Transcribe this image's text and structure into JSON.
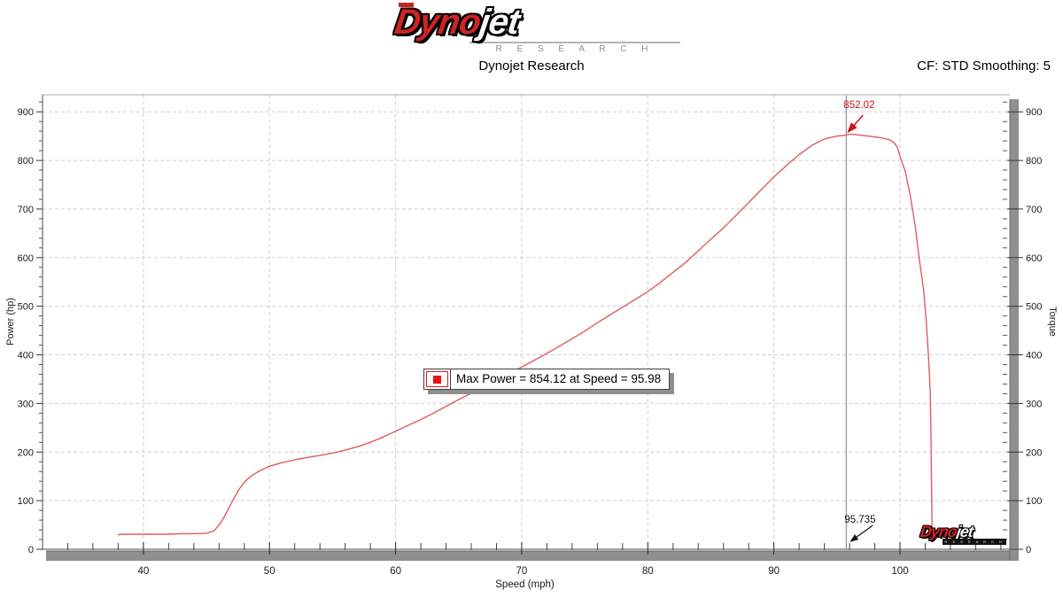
{
  "header": {
    "logo": {
      "brand_red": "Dyno",
      "brand_white": "jet",
      "research": "R E S E A R C H"
    },
    "subtitle": "Dynojet Research",
    "correction_info": "CF: STD Smoothing: 5"
  },
  "chart_data": {
    "type": "line",
    "title": "Dynojet Research",
    "xlabel": "Speed (mph)",
    "ylabel_left": "Power (hp)",
    "ylabel_right": "Torque",
    "xlim": [
      32,
      108.5
    ],
    "ylim": [
      0,
      935
    ],
    "x_major_ticks": [
      40,
      50,
      60,
      70,
      80,
      90,
      100
    ],
    "x_minor_step": 2,
    "y_major_ticks": [
      0,
      100,
      200,
      300,
      400,
      500,
      600,
      700,
      800,
      900
    ],
    "y_minor_step": 20,
    "grid_style": "dashed",
    "legend_position": "center-left",
    "max_power": 854.12,
    "max_power_speed": 95.98,
    "cursor": {
      "speed": 95.735,
      "power_at_cursor": 852.02,
      "power_label": "852.02",
      "speed_label": "95.735"
    },
    "legend": {
      "text": "Max Power = 854.12 at Speed = 95.98",
      "marker_color": "#ee1111"
    },
    "series": [
      {
        "name": "Power",
        "color": "#e25c5c",
        "points": [
          [
            38,
            30
          ],
          [
            38.5,
            31
          ],
          [
            39,
            31
          ],
          [
            40,
            31
          ],
          [
            41,
            31
          ],
          [
            42,
            31
          ],
          [
            43,
            32
          ],
          [
            44,
            32
          ],
          [
            45,
            33
          ],
          [
            45.6,
            38
          ],
          [
            46,
            50
          ],
          [
            46.4,
            66
          ],
          [
            46.8,
            86
          ],
          [
            47.2,
            106
          ],
          [
            47.6,
            124
          ],
          [
            48,
            138
          ],
          [
            48.5,
            150
          ],
          [
            49,
            158
          ],
          [
            49.5,
            165
          ],
          [
            50,
            171
          ],
          [
            51,
            178
          ],
          [
            52,
            184
          ],
          [
            53,
            189
          ],
          [
            54,
            193
          ],
          [
            55,
            198
          ],
          [
            56,
            204
          ],
          [
            57,
            211
          ],
          [
            58,
            220
          ],
          [
            59,
            231
          ],
          [
            60,
            243
          ],
          [
            61,
            255
          ],
          [
            62,
            267
          ],
          [
            63,
            280
          ],
          [
            64,
            294
          ],
          [
            65,
            308
          ],
          [
            66,
            321
          ],
          [
            67,
            335
          ],
          [
            68,
            348
          ],
          [
            69,
            361
          ],
          [
            70,
            375
          ],
          [
            71,
            389
          ],
          [
            72,
            403
          ],
          [
            73,
            418
          ],
          [
            74,
            433
          ],
          [
            75,
            449
          ],
          [
            76,
            466
          ],
          [
            77,
            482
          ],
          [
            78,
            498
          ],
          [
            79,
            514
          ],
          [
            80,
            530
          ],
          [
            81,
            549
          ],
          [
            82,
            570
          ],
          [
            83,
            590
          ],
          [
            84,
            614
          ],
          [
            85,
            638
          ],
          [
            86,
            661
          ],
          [
            87,
            687
          ],
          [
            88,
            713
          ],
          [
            89,
            740
          ],
          [
            90,
            766
          ],
          [
            91,
            790
          ],
          [
            92,
            812
          ],
          [
            93,
            831
          ],
          [
            94,
            844
          ],
          [
            95,
            850
          ],
          [
            95.735,
            852.02
          ],
          [
            95.98,
            854.12
          ],
          [
            96.5,
            853.2
          ],
          [
            97,
            851.5
          ],
          [
            97.7,
            849.5
          ],
          [
            98.5,
            846.5
          ],
          [
            99.1,
            843
          ],
          [
            99.4,
            839
          ],
          [
            99.6,
            834
          ],
          [
            99.8,
            826
          ],
          [
            100,
            808
          ],
          [
            100.4,
            779
          ],
          [
            100.8,
            730
          ],
          [
            101.2,
            666
          ],
          [
            101.5,
            602
          ],
          [
            101.9,
            529
          ],
          [
            102.1,
            462
          ],
          [
            102.25,
            401
          ],
          [
            102.4,
            323
          ],
          [
            102.45,
            243
          ],
          [
            102.5,
            133
          ],
          [
            102.55,
            24
          ]
        ]
      }
    ]
  },
  "watermark": {
    "brand_red": "Dyno",
    "brand_white": "jet",
    "research": "R E S E A R C H"
  },
  "colors": {
    "curve": "#e25c5c",
    "grid": "#cfcfcf",
    "axis_line": "#4a4a4a",
    "axis_bar": "#8f8f8f",
    "axis_bar_edge": "#646464",
    "cursor_line": "#767676",
    "annotation_red": "#cc1111",
    "annotation_black": "#111111",
    "legend_marker": "#ee1111"
  }
}
